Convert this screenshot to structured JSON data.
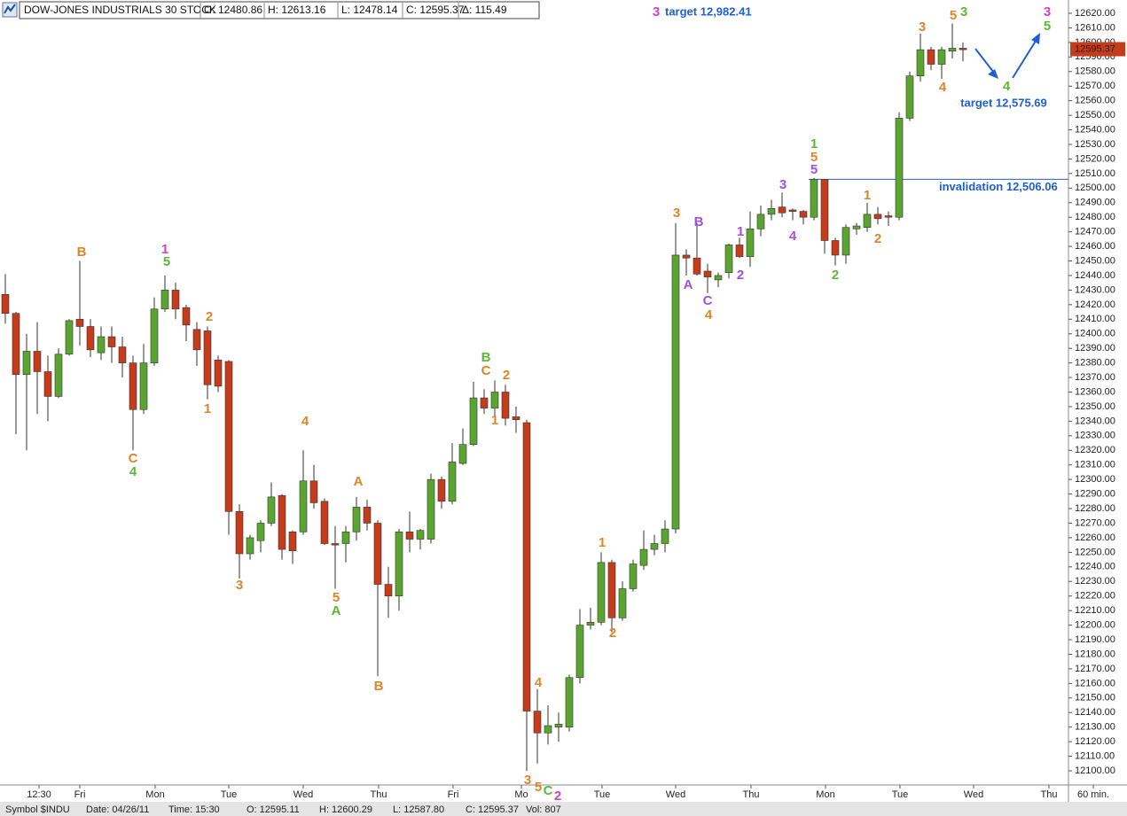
{
  "chart_data": {
    "type": "candlestick",
    "header": [
      "DOW-JONES INDUSTRIALS 30 STOCK",
      "O: 12480.86",
      "H: 12613.16",
      "L: 12478.14",
      "C: 12595.37",
      "Δ: 115.49"
    ],
    "footer": [
      "Symbol $INDU",
      "Date: 04/26/11",
      "Time: 15:30",
      "O: 12595.11",
      "H: 12600.29",
      "L: 12587.80",
      "C: 12595.37",
      "Vol: 807"
    ],
    "x_labels": [
      "12:30",
      "Fri",
      "Mon",
      "Tue",
      "Wed",
      "Thu",
      "Fri",
      "Mo",
      "Tue",
      "Wed",
      "Thu",
      "Mon",
      "Tue",
      "Wed",
      "Thu",
      "60 min."
    ],
    "up_color": "#5aa530",
    "down_color": "#c43c1c",
    "open": [
      12427,
      12414,
      12372,
      12388,
      12374,
      12357,
      12386,
      12410,
      12405,
      12387,
      12398,
      12391,
      12380,
      12348,
      12380,
      12417,
      12430,
      12418,
      12403,
      12402,
      12382,
      12381,
      12278,
      12249,
      12258,
      12270,
      12289,
      12264,
      12264,
      12299,
      12285,
      12256,
      12256,
      12264,
      12281,
      12270,
      12228,
      12220,
      12264,
      12259,
      12259,
      12300,
      12285,
      12311,
      12324,
      12356,
      12349,
      12360,
      12343,
      12339,
      12141,
      12126,
      12130,
      12130,
      12164,
      12200,
      12202,
      12243,
      12205,
      12225,
      12241,
      12252,
      12256,
      12266,
      12454,
      12452,
      12443,
      12437,
      12442,
      12461,
      12453,
      12472,
      12482,
      12487,
      12485,
      12484,
      12480,
      12506,
      12464,
      12454,
      12472,
      12473,
      12482,
      12481,
      12480,
      12548,
      12577,
      12595,
      12585,
      12594,
      12596
    ],
    "high": [
      12441,
      12415,
      12400,
      12408,
      12385,
      12390,
      12410,
      12450,
      12410,
      12405,
      12405,
      12398,
      12385,
      12393,
      12425,
      12440,
      12435,
      12420,
      12408,
      12405,
      12385,
      12382,
      12283,
      12262,
      12272,
      12298,
      12290,
      12265,
      12320,
      12310,
      12287,
      12268,
      12268,
      12288,
      12286,
      12272,
      12240,
      12266,
      12278,
      12266,
      12304,
      12302,
      12325,
      12335,
      12367,
      12362,
      12368,
      12365,
      12350,
      12341,
      12156,
      12145,
      12140,
      12166,
      12211,
      12212,
      12250,
      12245,
      12230,
      12245,
      12265,
      12262,
      12272,
      12476,
      12458,
      12476,
      12448,
      12442,
      12462,
      12466,
      12484,
      12488,
      12492,
      12497,
      12486,
      12485,
      12507,
      12506,
      12466,
      12475,
      12476,
      12490,
      12487,
      12484,
      12552,
      12580,
      12606,
      12597,
      12597,
      12613,
      12600
    ],
    "low": [
      12407,
      12331,
      12320,
      12345,
      12340,
      12356,
      12385,
      12392,
      12384,
      12382,
      12380,
      12370,
      12320,
      12345,
      12378,
      12415,
      12410,
      12395,
      12378,
      12355,
      12360,
      12262,
      12232,
      12245,
      12250,
      12268,
      12245,
      12242,
      12262,
      12280,
      12255,
      12225,
      12243,
      12258,
      12265,
      12165,
      12205,
      12210,
      12250,
      12252,
      12256,
      12280,
      12283,
      12310,
      12323,
      12345,
      12340,
      12337,
      12332,
      12100,
      12105,
      12118,
      12120,
      12127,
      12160,
      12197,
      12200,
      12195,
      12203,
      12223,
      12238,
      12248,
      12250,
      12263,
      12440,
      12440,
      12428,
      12432,
      12438,
      12452,
      12446,
      12467,
      12478,
      12480,
      12478,
      12475,
      12478,
      12455,
      12447,
      12448,
      12468,
      12470,
      12475,
      12474,
      12478,
      12546,
      12573,
      12581,
      12575,
      12589,
      12587
    ],
    "close": [
      12414,
      12372,
      12388,
      12374,
      12357,
      12386,
      12409,
      12405,
      12389,
      12398,
      12391,
      12380,
      12348,
      12380,
      12417,
      12430,
      12417,
      12406,
      12389,
      12365,
      12364,
      12278,
      12249,
      12260,
      12270,
      12288,
      12252,
      12251,
      12299,
      12284,
      12256,
      12255,
      12264,
      12281,
      12270,
      12228,
      12220,
      12264,
      12259,
      12265,
      12300,
      12285,
      12312,
      12324,
      12356,
      12349,
      12360,
      12342,
      12341,
      12141,
      12126,
      12131,
      12132,
      12164,
      12200,
      12202,
      12243,
      12205,
      12225,
      12242,
      12252,
      12256,
      12266,
      12454,
      12452,
      12441,
      12439,
      12440,
      12461,
      12453,
      12472,
      12482,
      12486,
      12483,
      12484,
      12480,
      12506,
      12464,
      12454,
      12473,
      12474,
      12482,
      12479,
      12480,
      12548,
      12577,
      12595,
      12585,
      12595,
      12596,
      12595
    ],
    "ylim": [
      12100,
      12620
    ],
    "yticks": [
      {
        "value": 12620,
        "label": "12620.00"
      },
      {
        "value": 12610,
        "label": "12610.00"
      },
      {
        "value": 12600,
        "label": "12600.00"
      },
      {
        "value": 12590,
        "label": "12590.00"
      },
      {
        "value": 12580,
        "label": "12580.00"
      },
      {
        "value": 12570,
        "label": "12570.00"
      },
      {
        "value": 12560,
        "label": "12560.00"
      },
      {
        "value": 12550,
        "label": "12550.00"
      },
      {
        "value": 12540,
        "label": "12540.00"
      },
      {
        "value": 12530,
        "label": "12530.00"
      },
      {
        "value": 12520,
        "label": "12520.00"
      },
      {
        "value": 12510,
        "label": "12510.00"
      },
      {
        "value": 12500,
        "label": "12500.00"
      },
      {
        "value": 12490,
        "label": "12490.00"
      },
      {
        "value": 12480,
        "label": "12480.00"
      },
      {
        "value": 12470,
        "label": "12470.00"
      },
      {
        "value": 12460,
        "label": "12460.00"
      },
      {
        "value": 12450,
        "label": "12450.00"
      },
      {
        "value": 12440,
        "label": "12440.00"
      },
      {
        "value": 12430,
        "label": "12430.00"
      },
      {
        "value": 12420,
        "label": "12420.00"
      },
      {
        "value": 12410,
        "label": "12410.00"
      },
      {
        "value": 12400,
        "label": "12400.00"
      },
      {
        "value": 12390,
        "label": "12390.00"
      },
      {
        "value": 12380,
        "label": "12380.00"
      },
      {
        "value": 12370,
        "label": "12370.00"
      },
      {
        "value": 12360,
        "label": "12360.00"
      },
      {
        "value": 12350,
        "label": "12350.00"
      },
      {
        "value": 12340,
        "label": "12340.00"
      },
      {
        "value": 12330,
        "label": "12330.00"
      },
      {
        "value": 12320,
        "label": "12320.00"
      },
      {
        "value": 12310,
        "label": "12310.00"
      },
      {
        "value": 12300,
        "label": "12300.00"
      },
      {
        "value": 12290,
        "label": "12290.00"
      },
      {
        "value": 12280,
        "label": "12280.00"
      },
      {
        "value": 12270,
        "label": "12270.00"
      },
      {
        "value": 12260,
        "label": "12260.00"
      },
      {
        "value": 12250,
        "label": "12250.00"
      },
      {
        "value": 12240,
        "label": "12240.00"
      },
      {
        "value": 12230,
        "label": "12230.00"
      },
      {
        "value": 12220,
        "label": "12220.00"
      },
      {
        "value": 12210,
        "label": "12210.00"
      },
      {
        "value": 12200,
        "label": "12200.00"
      },
      {
        "value": 12190,
        "label": "12190.00"
      },
      {
        "value": 12180,
        "label": "12180.00"
      },
      {
        "value": 12170,
        "label": "12170.00"
      },
      {
        "value": 12160,
        "label": "12160.00"
      },
      {
        "value": 12150,
        "label": "12150.00"
      },
      {
        "value": 12140,
        "label": "12140.00"
      },
      {
        "value": 12130,
        "label": "12130.00"
      },
      {
        "value": 12120,
        "label": "12120.00"
      },
      {
        "value": 12110,
        "label": "12110.00"
      },
      {
        "value": 12100,
        "label": "12100.00"
      }
    ],
    "last_price": 12595.37,
    "invalidation_level": 12506.06,
    "invalidation_label": "invalidation 12,506.06",
    "target_upper": {
      "wave": "3",
      "label": "target 12,982.41"
    },
    "target_lower": "target 12,575.69",
    "annotations": [
      {
        "text": "B",
        "color": "#e0842a"
      },
      {
        "text": "1",
        "color": "#d63fc8"
      },
      {
        "text": "5",
        "color": "#5cb836"
      },
      {
        "text": "2",
        "color": "#e0842a"
      },
      {
        "text": "1",
        "color": "#e0842a"
      },
      {
        "text": "C",
        "color": "#e0842a"
      },
      {
        "text": "4",
        "color": "#5cb836"
      },
      {
        "text": "4",
        "color": "#e0842a"
      },
      {
        "text": "A",
        "color": "#e0842a"
      },
      {
        "text": "3",
        "color": "#e0842a"
      },
      {
        "text": "5",
        "color": "#e0842a"
      },
      {
        "text": "A",
        "color": "#5cb836"
      },
      {
        "text": "B",
        "color": "#e0842a"
      },
      {
        "text": "B",
        "color": "#5cb836"
      },
      {
        "text": "C",
        "color": "#e0842a"
      },
      {
        "text": "2",
        "color": "#e0842a"
      },
      {
        "text": "1",
        "color": "#e0842a"
      },
      {
        "text": "1",
        "color": "#e0842a"
      },
      {
        "text": "2",
        "color": "#e0842a"
      },
      {
        "text": "4",
        "color": "#e0842a"
      },
      {
        "text": "3",
        "color": "#e0842a"
      },
      {
        "text": "5",
        "color": "#e0842a"
      },
      {
        "text": "C",
        "color": "#5cb836"
      },
      {
        "text": "2",
        "color": "#d63fc8"
      },
      {
        "text": "3",
        "color": "#e0842a"
      },
      {
        "text": "B",
        "color": "#a24fe0"
      },
      {
        "text": "A",
        "color": "#a24fe0"
      },
      {
        "text": "C",
        "color": "#a24fe0"
      },
      {
        "text": "4",
        "color": "#e0842a"
      },
      {
        "text": "1",
        "color": "#a24fe0"
      },
      {
        "text": "2",
        "color": "#a24fe0"
      },
      {
        "text": "3",
        "color": "#a24fe0"
      },
      {
        "text": "4",
        "color": "#a24fe0"
      },
      {
        "text": "1",
        "color": "#5cb836"
      },
      {
        "text": "5",
        "color": "#e0842a"
      },
      {
        "text": "5",
        "color": "#a24fe0"
      },
      {
        "text": "2",
        "color": "#5cb836"
      },
      {
        "text": "1",
        "color": "#e0842a"
      },
      {
        "text": "2",
        "color": "#e0842a"
      },
      {
        "text": "3",
        "color": "#e0842a"
      },
      {
        "text": "5",
        "color": "#e0842a"
      },
      {
        "text": "3",
        "color": "#5cb836"
      },
      {
        "text": "4",
        "color": "#e0842a"
      },
      {
        "text": "4",
        "color": "#5cb836"
      },
      {
        "text": "3",
        "color": "#d63fc8"
      },
      {
        "text": "5",
        "color": "#5cb836"
      }
    ]
  }
}
